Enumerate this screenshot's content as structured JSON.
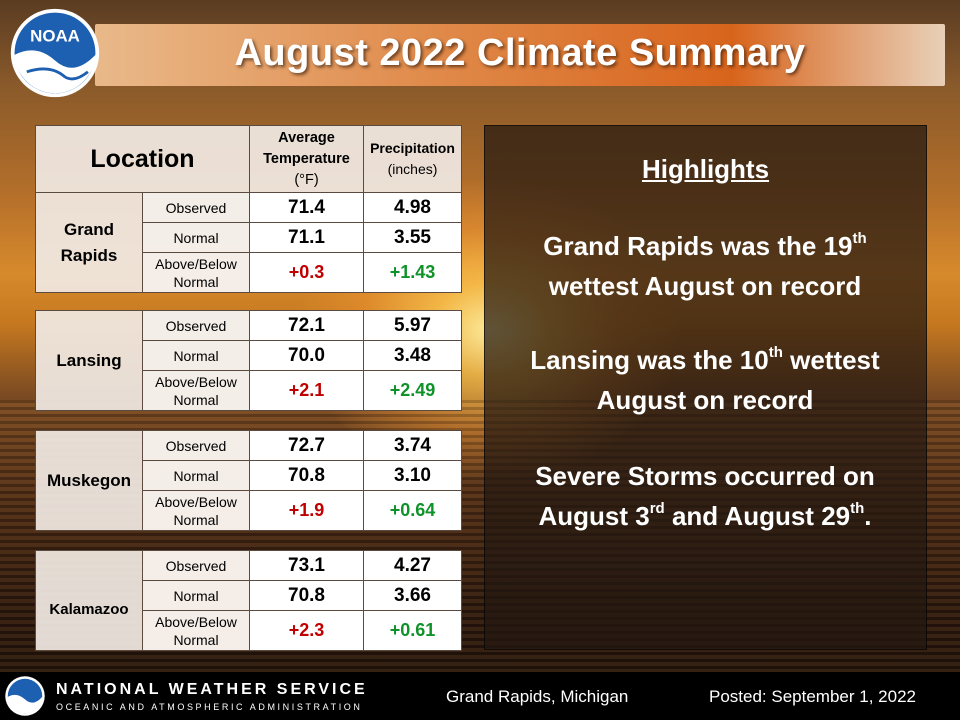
{
  "title": "August 2022 Climate Summary",
  "logo_text": "NOAA",
  "table": {
    "headers": {
      "location": "Location",
      "temperature_line1": "Average",
      "temperature_line2": "Temperature",
      "temperature_unit": "(°F)",
      "precipitation": "Precipitation",
      "precipitation_unit": "(inches)"
    },
    "row_labels": {
      "observed": "Observed",
      "normal": "Normal",
      "departure_line1": "Above/Below",
      "departure_line2": "Normal"
    },
    "locations": [
      {
        "name_line1": "Grand",
        "name_line2": "Rapids",
        "observed_temp": "71.4",
        "observed_precip": "4.98",
        "normal_temp": "71.1",
        "normal_precip": "3.55",
        "departure_temp": "+0.3",
        "departure_precip": "+1.43"
      },
      {
        "name_line1": "Lansing",
        "name_line2": "",
        "observed_temp": "72.1",
        "observed_precip": "5.97",
        "normal_temp": "70.0",
        "normal_precip": "3.48",
        "departure_temp": "+2.1",
        "departure_precip": "+2.49"
      },
      {
        "name_line1": "Muskegon",
        "name_line2": "",
        "observed_temp": "72.7",
        "observed_precip": "3.74",
        "normal_temp": "70.8",
        "normal_precip": "3.10",
        "departure_temp": "+1.9",
        "departure_precip": "+0.64"
      },
      {
        "name_line1": "Kalamazoo",
        "name_line2": "",
        "observed_temp": "73.1",
        "observed_precip": "4.27",
        "normal_temp": "70.8",
        "normal_precip": "3.66",
        "departure_temp": "+2.3",
        "departure_precip": "+0.61"
      }
    ]
  },
  "highlights": {
    "title": "Highlights",
    "item1": {
      "part1": "Grand Rapids was the 19",
      "sup1": "th",
      "part2": "wettest August on record"
    },
    "item2": {
      "part1": "Lansing was the 10",
      "sup1": "th",
      "part2": " wettest",
      "part3": "August on record"
    },
    "item3": {
      "part1": "Severe Storms occurred on",
      "part2": "August 3",
      "sup1": "rd",
      "part3": " and August 29",
      "sup2": "th",
      "part4": "."
    }
  },
  "footer": {
    "agency": "NATIONAL WEATHER SERVICE",
    "parent_agency": "OCEANIC AND ATMOSPHERIC ADMINISTRATION",
    "office": "Grand Rapids, Michigan",
    "posted": "Posted: September 1, 2022"
  },
  "colors": {
    "positive_temperature": "#c00000",
    "positive_precipitation": "#10922a",
    "title_text": "#ffffff"
  }
}
